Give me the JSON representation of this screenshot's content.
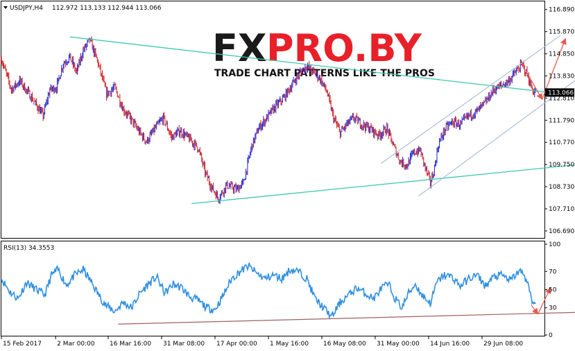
{
  "header": {
    "symbol": "USDJPY,H4",
    "ohlc": "112.972 113.133 112.944 113.066"
  },
  "watermark": {
    "brand_a": "FX",
    "brand_b": "PRO.BY",
    "tagline": "TRADE CHART PATTERNS LIKE THE PROS"
  },
  "colors": {
    "bull": "#1f1fd0",
    "bear": "#d01818",
    "trendline": "#3cc8b0",
    "channel": "#a8bfd8",
    "arrow": "#e85a50",
    "rsi": "#2f8fe0",
    "rsi_support": "#a06060",
    "price_badge": "#000000"
  },
  "chart_data": [
    {
      "type": "line",
      "title": "USDJPY,H4",
      "current_price": 113.066,
      "current_price_label": "113.066",
      "ylim": [
        106.4,
        117.2
      ],
      "y_ticks": [
        {
          "v": 116.89,
          "t": "116.890"
        },
        {
          "v": 115.87,
          "t": "115.870"
        },
        {
          "v": 114.85,
          "t": "114.850"
        },
        {
          "v": 113.83,
          "t": "113.830"
        },
        {
          "v": 112.81,
          "t": "112.810"
        },
        {
          "v": 111.79,
          "t": "111.790"
        },
        {
          "v": 110.77,
          "t": "110.770"
        },
        {
          "v": 109.75,
          "t": "109.750"
        },
        {
          "v": 108.73,
          "t": "108.730"
        },
        {
          "v": 107.71,
          "t": "107.710"
        },
        {
          "v": 106.69,
          "t": "106.690"
        }
      ],
      "x_ticks": [
        {
          "i": 0,
          "t": "15 Feb 2017"
        },
        {
          "i": 65,
          "t": "2 Mar 00:00"
        },
        {
          "i": 128,
          "t": "16 Mar 16:00"
        },
        {
          "i": 192,
          "t": "31 Mar 08:00"
        },
        {
          "i": 256,
          "t": "17 Apr 00:00"
        },
        {
          "i": 320,
          "t": "1 May 16:00"
        },
        {
          "i": 384,
          "t": "16 May 08:00"
        },
        {
          "i": 448,
          "t": "31 May 00:00"
        },
        {
          "i": 512,
          "t": "14 Jun 16:00"
        },
        {
          "i": 576,
          "t": "29 Jun 08:00"
        }
      ],
      "bars_total": 650,
      "price_path": [
        [
          0,
          114.6
        ],
        [
          12,
          113.2
        ],
        [
          22,
          113.6
        ],
        [
          35,
          112.9
        ],
        [
          50,
          112.0
        ],
        [
          58,
          113.2
        ],
        [
          66,
          113.3
        ],
        [
          74,
          114.4
        ],
        [
          82,
          114.7
        ],
        [
          90,
          114.0
        ],
        [
          98,
          115.0
        ],
        [
          106,
          115.5
        ],
        [
          116,
          114.4
        ],
        [
          126,
          113.0
        ],
        [
          136,
          113.3
        ],
        [
          146,
          112.3
        ],
        [
          156,
          111.8
        ],
        [
          166,
          111.2
        ],
        [
          174,
          110.8
        ],
        [
          184,
          111.4
        ],
        [
          194,
          111.9
        ],
        [
          204,
          111.0
        ],
        [
          214,
          111.3
        ],
        [
          226,
          110.9
        ],
        [
          236,
          110.5
        ],
        [
          244,
          109.4
        ],
        [
          252,
          108.7
        ],
        [
          260,
          108.2
        ],
        [
          270,
          108.8
        ],
        [
          282,
          108.6
        ],
        [
          290,
          108.9
        ],
        [
          300,
          110.6
        ],
        [
          308,
          111.4
        ],
        [
          318,
          111.9
        ],
        [
          328,
          112.4
        ],
        [
          338,
          112.8
        ],
        [
          348,
          113.4
        ],
        [
          358,
          114.0
        ],
        [
          366,
          114.3
        ],
        [
          374,
          114.0
        ],
        [
          382,
          113.7
        ],
        [
          390,
          113.1
        ],
        [
          398,
          111.9
        ],
        [
          406,
          111.2
        ],
        [
          414,
          111.6
        ],
        [
          422,
          111.9
        ],
        [
          432,
          111.6
        ],
        [
          442,
          111.4
        ],
        [
          452,
          111.1
        ],
        [
          462,
          111.4
        ],
        [
          470,
          110.6
        ],
        [
          478,
          109.9
        ],
        [
          486,
          109.7
        ],
        [
          494,
          110.3
        ],
        [
          502,
          110.4
        ],
        [
          508,
          109.6
        ],
        [
          514,
          108.9
        ],
        [
          518,
          109.4
        ],
        [
          524,
          110.7
        ],
        [
          532,
          111.4
        ],
        [
          540,
          111.7
        ],
        [
          550,
          111.6
        ],
        [
          560,
          112.0
        ],
        [
          570,
          112.2
        ],
        [
          580,
          112.6
        ],
        [
          590,
          113.2
        ],
        [
          600,
          113.4
        ],
        [
          608,
          113.6
        ],
        [
          616,
          114.0
        ],
        [
          624,
          114.35
        ],
        [
          630,
          113.9
        ],
        [
          636,
          113.2
        ],
        [
          640,
          113.066
        ]
      ],
      "annotations": [
        {
          "kind": "trendline",
          "from": [
            82,
            115.63
          ],
          "to": [
            672,
            113.0
          ]
        },
        {
          "kind": "trendline",
          "from": [
            228,
            107.95
          ],
          "to": [
            718,
            109.85
          ]
        },
        {
          "kind": "channel",
          "from": [
            455,
            109.8
          ],
          "to": [
            670,
            115.7
          ]
        },
        {
          "kind": "channel",
          "from": [
            500,
            108.3
          ],
          "to": [
            715,
            114.4
          ]
        },
        {
          "kind": "arrow",
          "from": [
            628,
            114.1
          ],
          "to": [
            648,
            112.75
          ]
        },
        {
          "kind": "arrow",
          "from": [
            648,
            112.75
          ],
          "to": [
            676,
            115.55
          ]
        }
      ]
    },
    {
      "type": "line",
      "title": "RSI(13) 34.3553",
      "ylim": [
        0,
        100
      ],
      "y_ticks": [
        {
          "v": 100,
          "t": "100"
        },
        {
          "v": 70,
          "t": "70"
        },
        {
          "v": 50,
          "t": "50"
        },
        {
          "v": 30,
          "t": "30"
        },
        {
          "v": 0,
          "t": "0"
        }
      ],
      "rsi_path": [
        [
          0,
          62
        ],
        [
          10,
          48
        ],
        [
          20,
          40
        ],
        [
          30,
          58
        ],
        [
          42,
          50
        ],
        [
          52,
          44
        ],
        [
          60,
          66
        ],
        [
          68,
          72
        ],
        [
          78,
          55
        ],
        [
          88,
          66
        ],
        [
          98,
          72
        ],
        [
          108,
          58
        ],
        [
          118,
          42
        ],
        [
          126,
          32
        ],
        [
          136,
          26
        ],
        [
          146,
          36
        ],
        [
          156,
          30
        ],
        [
          166,
          46
        ],
        [
          176,
          56
        ],
        [
          186,
          64
        ],
        [
          196,
          46
        ],
        [
          206,
          56
        ],
        [
          216,
          52
        ],
        [
          226,
          42
        ],
        [
          236,
          38
        ],
        [
          246,
          30
        ],
        [
          256,
          28
        ],
        [
          266,
          44
        ],
        [
          276,
          62
        ],
        [
          286,
          70
        ],
        [
          296,
          76
        ],
        [
          306,
          68
        ],
        [
          316,
          62
        ],
        [
          326,
          66
        ],
        [
          336,
          62
        ],
        [
          346,
          72
        ],
        [
          356,
          70
        ],
        [
          366,
          62
        ],
        [
          376,
          40
        ],
        [
          386,
          30
        ],
        [
          396,
          20
        ],
        [
          406,
          36
        ],
        [
          416,
          44
        ],
        [
          426,
          52
        ],
        [
          436,
          46
        ],
        [
          446,
          40
        ],
        [
          456,
          52
        ],
        [
          464,
          56
        ],
        [
          472,
          40
        ],
        [
          480,
          30
        ],
        [
          488,
          46
        ],
        [
          496,
          56
        ],
        [
          504,
          44
        ],
        [
          514,
          35
        ],
        [
          522,
          58
        ],
        [
          530,
          66
        ],
        [
          540,
          64
        ],
        [
          550,
          54
        ],
        [
          560,
          62
        ],
        [
          570,
          66
        ],
        [
          580,
          54
        ],
        [
          590,
          64
        ],
        [
          600,
          66
        ],
        [
          610,
          60
        ],
        [
          620,
          70
        ],
        [
          626,
          68
        ],
        [
          632,
          52
        ],
        [
          636,
          36
        ],
        [
          640,
          34.3553
        ]
      ],
      "annotations": [
        {
          "kind": "support",
          "from": [
            140,
            12
          ],
          "to": [
            692,
            25
          ]
        },
        {
          "kind": "arrow",
          "from": [
            635,
            33
          ],
          "to": [
            643,
            23
          ]
        },
        {
          "kind": "arrow",
          "from": [
            643,
            23
          ],
          "to": [
            658,
            52
          ]
        }
      ]
    }
  ]
}
